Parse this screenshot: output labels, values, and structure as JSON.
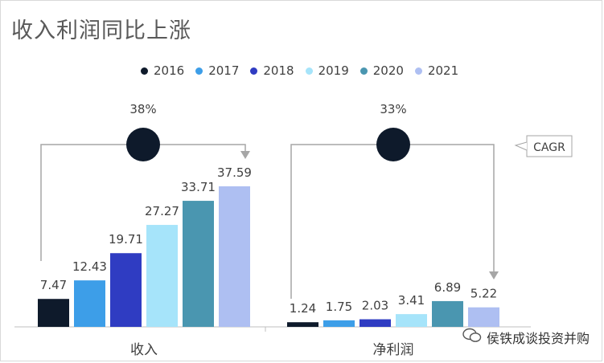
{
  "title": "收入利润同比上涨",
  "legend": [
    {
      "label": "2016",
      "color": "#0e1a2b"
    },
    {
      "label": "2017",
      "color": "#3d9ee8"
    },
    {
      "label": "2018",
      "color": "#2f3cc2"
    },
    {
      "label": "2019",
      "color": "#a6e4fa"
    },
    {
      "label": "2020",
      "color": "#4a96b0"
    },
    {
      "label": "2021",
      "color": "#aebff2"
    }
  ],
  "chart_data": {
    "type": "bar",
    "categories": [
      "收入",
      "净利润"
    ],
    "series": [
      {
        "name": "2016",
        "values": [
          7.47,
          1.24
        ]
      },
      {
        "name": "2017",
        "values": [
          12.43,
          1.75
        ]
      },
      {
        "name": "2018",
        "values": [
          19.71,
          2.03
        ]
      },
      {
        "name": "2019",
        "values": [
          27.27,
          3.41
        ]
      },
      {
        "name": "2020",
        "values": [
          33.71,
          6.89
        ]
      },
      {
        "name": "2021",
        "values": [
          37.59,
          5.22
        ]
      }
    ],
    "data_labels": [
      [
        "7.47",
        "12.43",
        "19.71",
        "27.27",
        "33.71",
        "37.59"
      ],
      [
        "1.24",
        "1.75",
        "2.03",
        "3.41",
        "6.89",
        "5.22"
      ]
    ],
    "cagr": [
      "38%",
      "33%"
    ],
    "cagr_label": "CAGR",
    "ylim": [
      0,
      40
    ]
  },
  "footer": {
    "account": "侯铁成谈投资并购"
  }
}
